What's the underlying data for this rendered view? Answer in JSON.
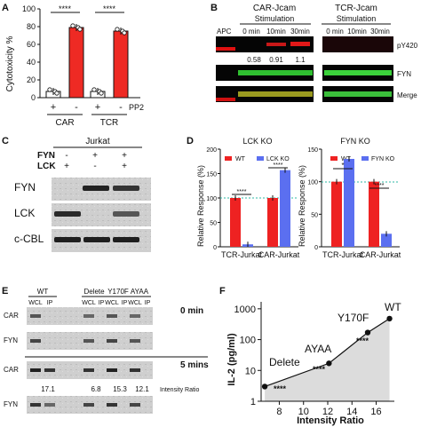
{
  "panel_a": {
    "letter": "A",
    "ylabel": "Cytotoxicity %",
    "yticks": [
      "0",
      "20",
      "40",
      "60",
      "80",
      "100"
    ],
    "sig": [
      "****",
      "****"
    ],
    "pp2_row": [
      "+",
      "-",
      "+",
      "-"
    ],
    "pp2_label": "PP2",
    "groups": [
      "CAR",
      "TCR"
    ]
  },
  "panel_b": {
    "letter": "B",
    "car_title": "CAR-Jcam",
    "tcr_title": "TCR-Jcam",
    "stim_car": "Stimulation",
    "stim_tcr": "Stimulation",
    "apc": "APC",
    "times_car": [
      "0 min",
      "10min",
      "30min"
    ],
    "times_tcr": [
      "0 min",
      "10min",
      "30min"
    ],
    "values": [
      "0.58",
      "0.91",
      "1.1"
    ],
    "rows": [
      "pY420",
      "FYN",
      "Merge"
    ]
  },
  "panel_c": {
    "letter": "C",
    "title": "Jurkat",
    "fyn_label": "FYN",
    "lck_label": "LCK",
    "fyn_row": [
      "-",
      "+",
      "+"
    ],
    "lck_row": [
      "+",
      "-",
      "+"
    ],
    "bands": [
      "FYN",
      "LCK",
      "c-CBL"
    ]
  },
  "panel_d": {
    "letter": "D",
    "left_title": "LCK KO",
    "right_title": "FYN KO",
    "ylabel": "Relative Response (%)",
    "left_legend": [
      "WT",
      "LCK KO"
    ],
    "right_legend": [
      "WT",
      "FYN KO"
    ],
    "yticks": [
      "0",
      "50",
      "100",
      "150",
      "200"
    ],
    "categories": [
      "TCR-Jurkat",
      "CAR-Jurkat"
    ],
    "left_sig": [
      "****",
      "****"
    ],
    "right_sig": [
      "*",
      "****"
    ]
  },
  "panel_e": {
    "letter": "E",
    "groups": [
      "WT",
      "Delete",
      "Y170F",
      "AYAA"
    ],
    "lanes": [
      "WCL",
      "IP",
      "WCL",
      "IP",
      "WCL",
      "IP",
      "WCL",
      "IP"
    ],
    "time1": "0 min",
    "time2": "5 mins",
    "rows": [
      "CAR",
      "FYN",
      "CAR",
      "FYN"
    ],
    "ratios": [
      "17.1",
      "6.8",
      "15.3",
      "12.1"
    ],
    "ratio_label": "Intensity Ratio"
  },
  "panel_f": {
    "letter": "F",
    "points": [
      "Delete",
      "AYAA",
      "Y170F",
      "WT"
    ],
    "sig": [
      "****",
      "****",
      "****"
    ],
    "yticks": [
      "1",
      "10",
      "100",
      "1000"
    ],
    "xticks": [
      "8",
      "10",
      "12",
      "14",
      "16"
    ]
  },
  "chart_data": [
    {
      "type": "bar",
      "panel": "A",
      "categories": [
        "CAR +PP2",
        "CAR -PP2",
        "TCR +PP2",
        "TCR -PP2"
      ],
      "values": [
        7,
        79,
        7,
        75
      ],
      "ylabel": "Cytotoxicity %",
      "ylim": [
        0,
        100
      ]
    },
    {
      "type": "bar",
      "panel": "D-left",
      "title": "LCK KO",
      "categories": [
        "TCR-Jurkat",
        "CAR-Jurkat"
      ],
      "series": [
        {
          "name": "WT",
          "values": [
            100,
            100
          ]
        },
        {
          "name": "LCK KO",
          "values": [
            5,
            157
          ]
        }
      ],
      "ylabel": "Relative Response (%)",
      "ylim": [
        0,
        200
      ]
    },
    {
      "type": "bar",
      "panel": "D-right",
      "title": "FYN KO",
      "categories": [
        "TCR-Jurkat",
        "CAR-Jurkat"
      ],
      "series": [
        {
          "name": "WT",
          "values": [
            100,
            100
          ]
        },
        {
          "name": "FYN KO",
          "values": [
            135,
            20
          ]
        }
      ],
      "ylabel": "Relative Response (%)",
      "ylim": [
        0,
        150
      ]
    },
    {
      "type": "line",
      "panel": "F",
      "xlabel": "Intensity Ratio",
      "ylabel": "IL-2 (pg/ml)",
      "x": [
        6.8,
        12.1,
        15.3,
        17.1
      ],
      "y": [
        3,
        17,
        170,
        480
      ],
      "labels": [
        "Delete",
        "AYAA",
        "Y170F",
        "WT"
      ],
      "xlim": [
        7,
        17
      ],
      "ylim": [
        1,
        1000
      ],
      "yscale": "log"
    }
  ]
}
